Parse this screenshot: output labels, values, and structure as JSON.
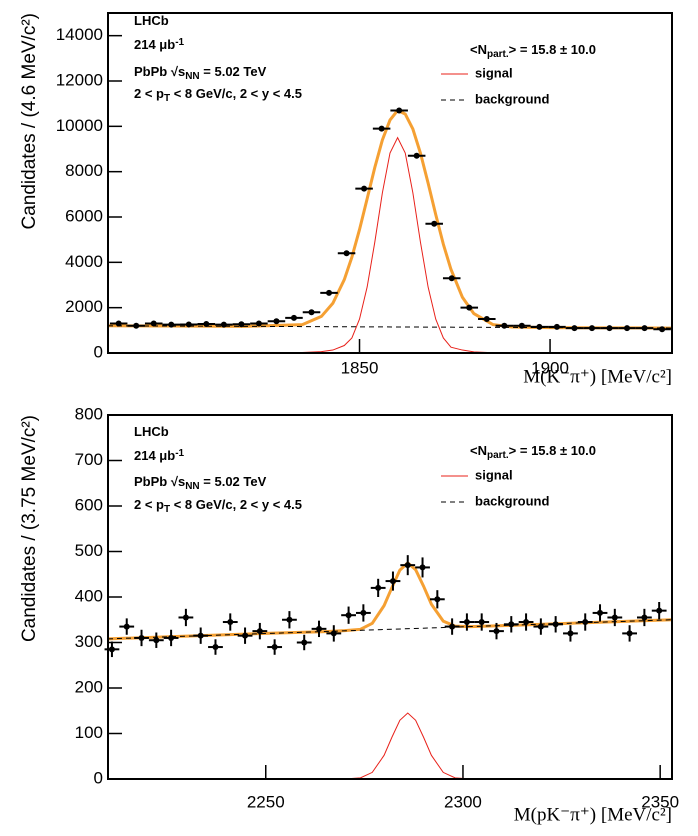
{
  "chart_data": [
    {
      "type": "errorbar",
      "ylabel": "Candidates / (4.6 MeV/c²)",
      "xlabel": "M(K⁻π⁺) [MeV/c²]",
      "xlim": [
        1784,
        1932
      ],
      "ylim": [
        0,
        15000
      ],
      "xticks": [
        1850,
        1900
      ],
      "yticks": [
        0,
        2000,
        4000,
        6000,
        8000,
        10000,
        12000,
        14000
      ],
      "annotations": [
        [
          {
            "text": "LHCb"
          }
        ],
        [
          {
            "text": "214 μb"
          },
          {
            "text": "-1",
            "shift": "sup"
          }
        ],
        [
          {
            "text": "PbPb √s"
          },
          {
            "text": "NN",
            "shift": "sub"
          },
          {
            "text": " = 5.02 TeV"
          }
        ],
        [
          {
            "text": "2 < p"
          },
          {
            "text": "T",
            "shift": "sub"
          },
          {
            "text": " < 8 GeV/c, 2 < y < 4.5"
          }
        ]
      ],
      "legend_title": [
        {
          "text": "<N"
        },
        {
          "text": "part.",
          "shift": "sub"
        },
        {
          "text": "> = 15.8 ± 10.0"
        }
      ],
      "color": "#000000",
      "x": [
        1786.8,
        1791.4,
        1796,
        1800.6,
        1805.2,
        1809.8,
        1814.4,
        1819,
        1823.6,
        1828.2,
        1832.8,
        1837.4,
        1842,
        1846.6,
        1851.2,
        1855.8,
        1860.4,
        1865,
        1869.6,
        1874.2,
        1878.8,
        1883.4,
        1888,
        1892.6,
        1897.2,
        1901.8,
        1906.4,
        1911,
        1915.6,
        1920.2,
        1924.8,
        1929.4
      ],
      "values": [
        1300,
        1200,
        1300,
        1250,
        1260,
        1280,
        1250,
        1270,
        1300,
        1400,
        1550,
        1800,
        2650,
        4400,
        7250,
        9900,
        10700,
        8700,
        5700,
        3300,
        2000,
        1500,
        1200,
        1200,
        1150,
        1150,
        1100,
        1100,
        1100,
        1100,
        1100,
        1050
      ],
      "errors": [
        36,
        35,
        36,
        35,
        36,
        36,
        35,
        36,
        36,
        37,
        39,
        42,
        51,
        66,
        85,
        99,
        103,
        93,
        75,
        57,
        45,
        39,
        35,
        35,
        34,
        34,
        33,
        33,
        33,
        33,
        33,
        32
      ],
      "curves": [
        {
          "color": "#f5a033",
          "linewidth": 3,
          "x": [
            1784,
            1800,
            1820,
            1835,
            1840,
            1843,
            1846,
            1848,
            1850,
            1852,
            1854,
            1856,
            1858,
            1860,
            1862,
            1864,
            1866,
            1868,
            1870,
            1872,
            1874,
            1877,
            1880,
            1885,
            1890,
            1900,
            1915,
            1932
          ],
          "values": [
            1200,
            1189,
            1176,
            1251,
            1613,
            2195,
            3234,
            4229,
            5445,
            6807,
            8178,
            9396,
            10278,
            10699,
            10542,
            9883,
            8813,
            7497,
            6108,
            4798,
            3689,
            2459,
            1740,
            1254,
            1145,
            1122,
            1111,
            1100
          ]
        },
        {
          "name": "signal",
          "color": "#e8211a",
          "linewidth": 1,
          "x": [
            1784,
            1800,
            1820,
            1835,
            1840,
            1843,
            1846,
            1848,
            1850,
            1852,
            1854,
            1856,
            1858,
            1860,
            1862,
            1864,
            1866,
            1868,
            1870,
            1872,
            1874,
            1877,
            1880,
            1885,
            1890,
            1900,
            1915,
            1932
          ],
          "values": [
            0,
            0,
            0,
            20,
            60,
            130,
            330,
            664,
            1495,
            2910,
            4880,
            7066,
            8823,
            9500,
            8823,
            7066,
            4880,
            2910,
            1495,
            664,
            254,
            130,
            50,
            10,
            0,
            0,
            0,
            0
          ]
        },
        {
          "name": "background",
          "color": "#000000",
          "linewidth": 1,
          "linestyle": "dashed",
          "x": [
            1784,
            1932
          ],
          "values": [
            1200,
            1100
          ]
        }
      ]
    },
    {
      "type": "errorbar",
      "ylabel": "Candidates / (3.75 MeV/c²)",
      "xlabel": "M(pK⁻π⁺) [MeV/c²]",
      "xlim": [
        2210,
        2353
      ],
      "ylim": [
        0,
        800
      ],
      "xticks": [
        2250,
        2300,
        2350
      ],
      "yticks": [
        0,
        100,
        200,
        300,
        400,
        500,
        600,
        700,
        800
      ],
      "annotations": [
        [
          {
            "text": "LHCb"
          }
        ],
        [
          {
            "text": "214 μb"
          },
          {
            "text": "-1",
            "shift": "sup"
          }
        ],
        [
          {
            "text": "PbPb √s"
          },
          {
            "text": "NN",
            "shift": "sub"
          },
          {
            "text": " = 5.02 TeV"
          }
        ],
        [
          {
            "text": "2 < p"
          },
          {
            "text": "T",
            "shift": "sub"
          },
          {
            "text": " < 8 GeV/c, 2 < y < 4.5"
          }
        ]
      ],
      "legend_title": [
        {
          "text": "<N"
        },
        {
          "text": "part.",
          "shift": "sub"
        },
        {
          "text": "> = 15.8 ± 10.0"
        }
      ],
      "color": "#000000",
      "x": [
        2211,
        2214.75,
        2218.5,
        2222.25,
        2226,
        2229.75,
        2233.5,
        2237.25,
        2241,
        2244.75,
        2248.5,
        2252.25,
        2256,
        2259.75,
        2263.5,
        2267.25,
        2271,
        2274.75,
        2278.5,
        2282.25,
        2286,
        2289.75,
        2293.5,
        2297.25,
        2301,
        2304.75,
        2308.5,
        2312.25,
        2316,
        2319.75,
        2323.5,
        2327.25,
        2331,
        2334.75,
        2338.5,
        2342.25,
        2346,
        2349.75
      ],
      "values": [
        285,
        335,
        310,
        305,
        310,
        355,
        315,
        290,
        345,
        315,
        325,
        290,
        350,
        300,
        330,
        320,
        360,
        365,
        420,
        435,
        470,
        465,
        395,
        335,
        345,
        345,
        325,
        340,
        345,
        335,
        340,
        320,
        345,
        365,
        355,
        320,
        355,
        370
      ],
      "errors": [
        17,
        18,
        18,
        17,
        18,
        19,
        18,
        17,
        19,
        18,
        18,
        17,
        19,
        17,
        18,
        18,
        19,
        19,
        20,
        21,
        22,
        22,
        20,
        18,
        19,
        19,
        18,
        18,
        19,
        18,
        18,
        18,
        19,
        19,
        19,
        18,
        19,
        19
      ],
      "curves": [
        {
          "color": "#f5a033",
          "linewidth": 3,
          "x": [
            2210,
            2230,
            2250,
            2265,
            2270,
            2274,
            2277,
            2280,
            2282,
            2284,
            2286,
            2288,
            2290,
            2292,
            2295,
            2298,
            2302,
            2310,
            2330,
            2353
          ],
          "values": [
            308,
            314,
            320,
            324,
            326,
            329,
            342,
            381,
            421,
            459,
            475,
            460,
            424,
            384,
            347,
            336,
            335,
            337,
            343,
            350
          ]
        },
        {
          "name": "signal",
          "color": "#e8211a",
          "linewidth": 1,
          "x": [
            2210,
            2230,
            2250,
            2265,
            2270,
            2274,
            2277,
            2280,
            2282,
            2284,
            2286,
            2288,
            2290,
            2292,
            2295,
            2298,
            2302,
            2310,
            2330,
            2353
          ],
          "values": [
            0,
            0,
            0,
            0,
            0,
            2.5,
            14.5,
            52,
            92,
            129,
            145,
            129,
            92,
            52,
            14.5,
            2.5,
            0,
            0,
            0,
            0
          ]
        },
        {
          "name": "background",
          "color": "#000000",
          "linewidth": 1,
          "linestyle": "dashed",
          "x": [
            2210,
            2353
          ],
          "values": [
            308,
            350
          ]
        }
      ]
    }
  ]
}
